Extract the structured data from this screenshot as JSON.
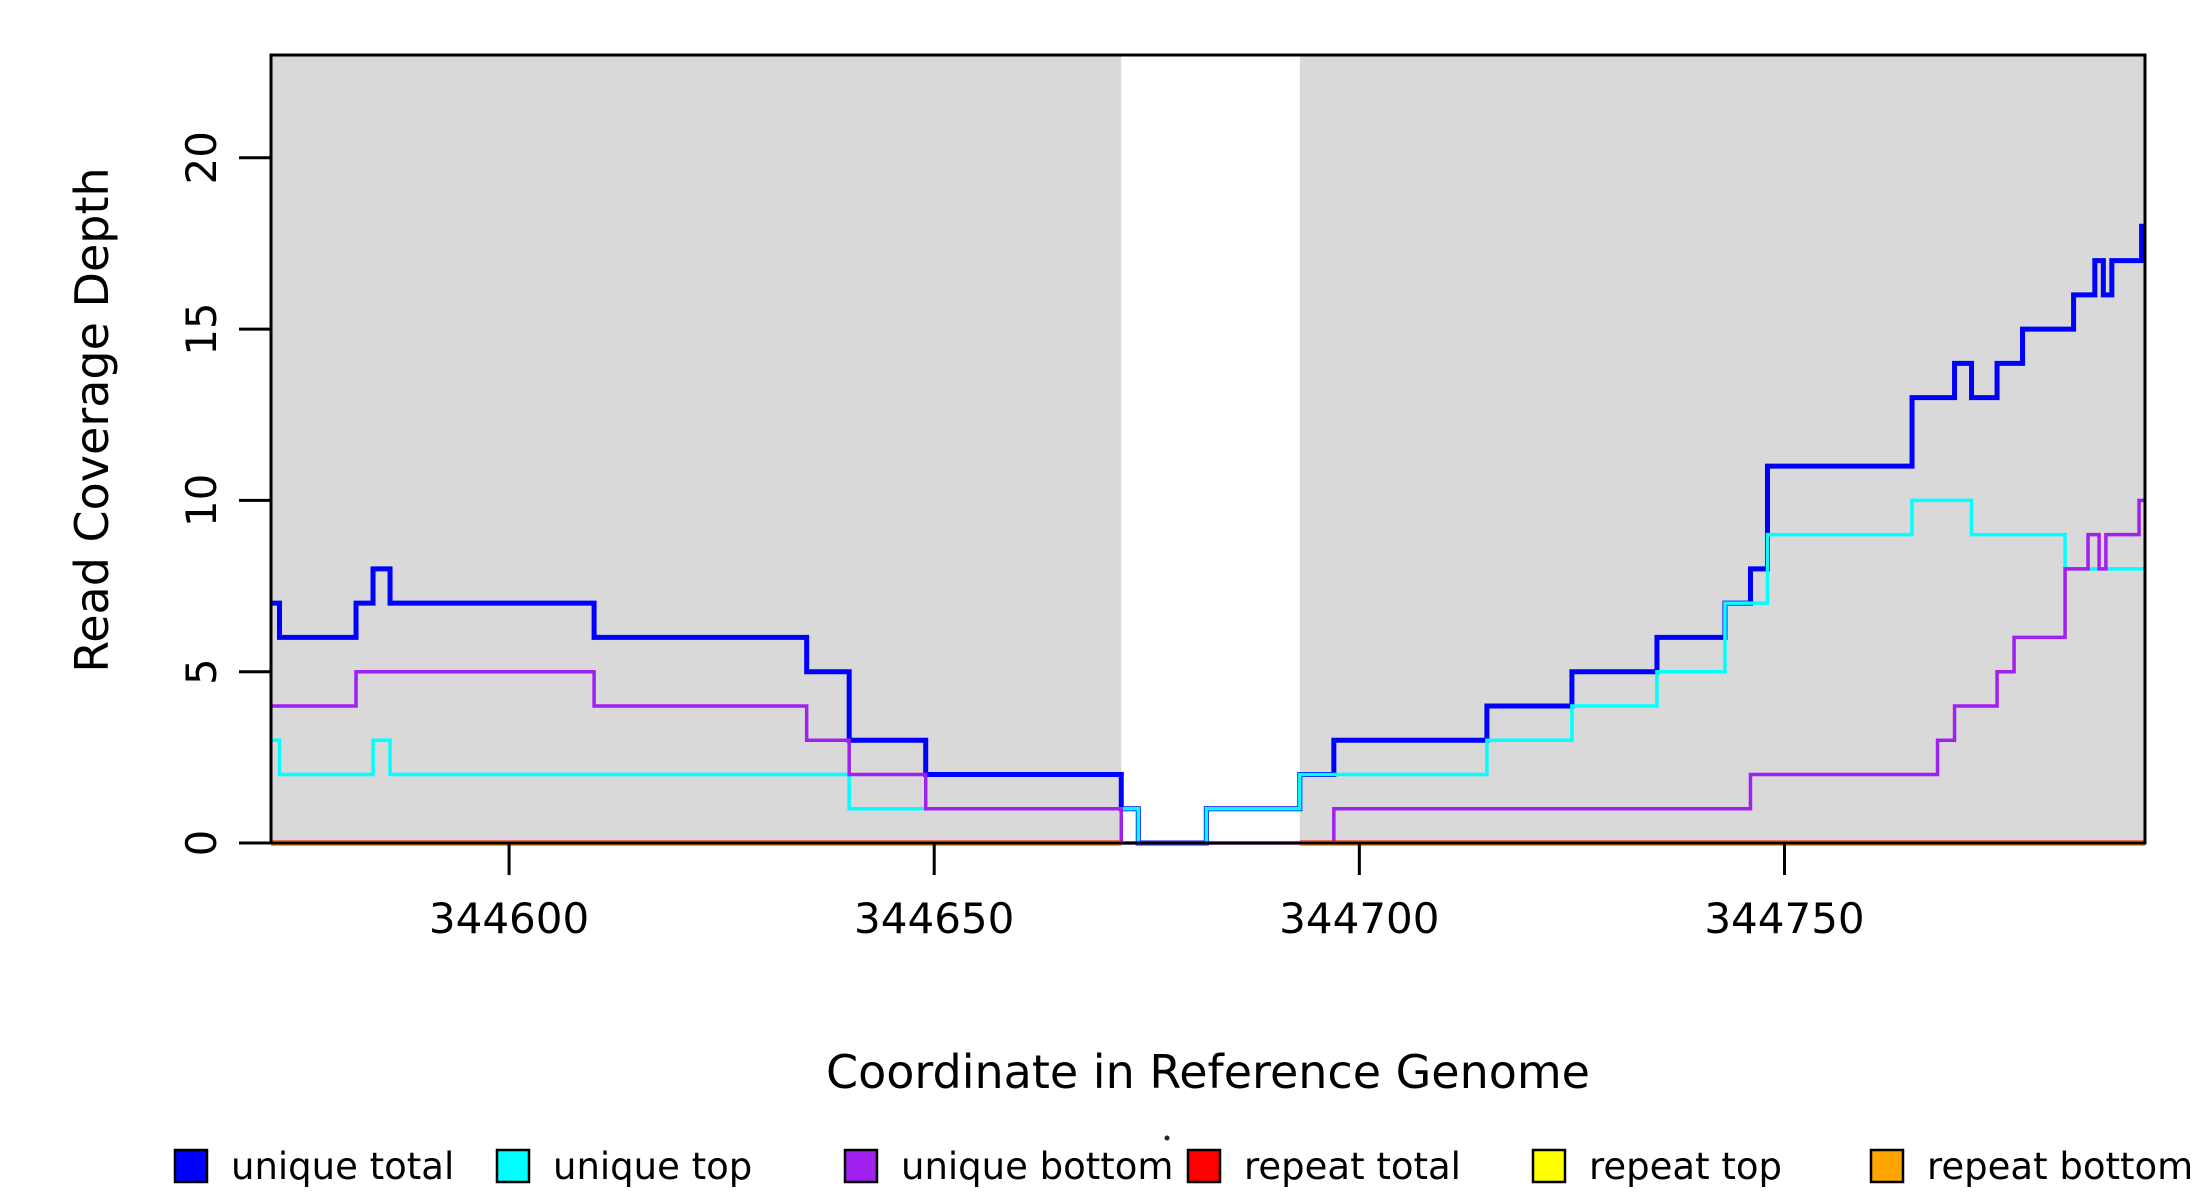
{
  "figure": {
    "background_color": "#ffffff",
    "shaded_band_color": "#d9d9d9",
    "axis_color": "#000000"
  },
  "chart_data": {
    "type": "line",
    "subtype": "step-after-coverage-plot",
    "title": "",
    "xlabel": "Coordinate in Reference Genome",
    "ylabel": "Read Coverage Depth",
    "xlim": [
      344572,
      344792.4
    ],
    "ylim": [
      0,
      23
    ],
    "x_ticks": [
      344600,
      344650,
      344700,
      344750
    ],
    "y_ticks": [
      0,
      5,
      10,
      15,
      20
    ],
    "grid": false,
    "legend_position": "bottom",
    "shaded_regions": [
      {
        "from": 344572,
        "to": 344672
      },
      {
        "from": 344693,
        "to": 344792.4
      }
    ],
    "series": [
      {
        "name": "unique total",
        "color": "#0000ff",
        "line_width": 5,
        "steps": [
          [
            344572,
            7
          ],
          [
            344573,
            6
          ],
          [
            344582,
            7
          ],
          [
            344584,
            8
          ],
          [
            344586,
            7
          ],
          [
            344610,
            6
          ],
          [
            344635,
            5
          ],
          [
            344640,
            3
          ],
          [
            344649,
            2
          ],
          [
            344672,
            1
          ],
          [
            344674,
            0
          ],
          [
            344682,
            1
          ],
          [
            344693,
            2
          ],
          [
            344697,
            3
          ],
          [
            344715,
            4
          ],
          [
            344725,
            5
          ],
          [
            344735,
            6
          ],
          [
            344743,
            7
          ],
          [
            344746,
            8
          ],
          [
            344748,
            11
          ],
          [
            344765,
            13
          ],
          [
            344770,
            14
          ],
          [
            344772,
            13
          ],
          [
            344775,
            14
          ],
          [
            344778,
            15
          ],
          [
            344784,
            16
          ],
          [
            344786.5,
            17
          ],
          [
            344787.5,
            16
          ],
          [
            344788.5,
            17
          ],
          [
            344792,
            18
          ]
        ]
      },
      {
        "name": "unique top",
        "color": "#00ffff",
        "line_width": 3.5,
        "steps": [
          [
            344572,
            3
          ],
          [
            344573,
            2
          ],
          [
            344584,
            3
          ],
          [
            344586,
            2
          ],
          [
            344640,
            1
          ],
          [
            344674,
            0
          ],
          [
            344682,
            1
          ],
          [
            344693,
            2
          ],
          [
            344715,
            3
          ],
          [
            344725,
            4
          ],
          [
            344735,
            5
          ],
          [
            344743,
            7
          ],
          [
            344748,
            9
          ],
          [
            344765,
            10
          ],
          [
            344772,
            9
          ],
          [
            344783,
            8
          ]
        ]
      },
      {
        "name": "unique bottom",
        "color": "#a020f0",
        "line_width": 3.5,
        "steps": [
          [
            344572,
            4
          ],
          [
            344582,
            5
          ],
          [
            344610,
            4
          ],
          [
            344635,
            3
          ],
          [
            344640,
            2
          ],
          [
            344649,
            1
          ],
          [
            344672,
            0
          ],
          [
            344697,
            1
          ],
          [
            344746,
            2
          ],
          [
            344768,
            3
          ],
          [
            344770,
            4
          ],
          [
            344775,
            5
          ],
          [
            344777,
            6
          ],
          [
            344783,
            8
          ],
          [
            344785.7,
            9
          ],
          [
            344787,
            8
          ],
          [
            344787.8,
            9
          ],
          [
            344791.7,
            10
          ]
        ]
      },
      {
        "name": "repeat total",
        "color": "#ff0000",
        "line_width": 5,
        "constant_value": 0,
        "segments": [
          {
            "from": 344572,
            "to": 344672
          },
          {
            "from": 344693,
            "to": 344792.4
          }
        ]
      },
      {
        "name": "repeat top",
        "color": "#ffff00",
        "line_width": 3.5,
        "constant_value": 0,
        "segments": [
          {
            "from": 344572,
            "to": 344672
          },
          {
            "from": 344693,
            "to": 344792.4
          }
        ]
      },
      {
        "name": "repeat bottom",
        "color": "#ffa500",
        "line_width": 4,
        "constant_value": 0,
        "segments": [
          {
            "from": 344572,
            "to": 344672
          },
          {
            "from": 344693,
            "to": 344792.4
          }
        ]
      }
    ]
  },
  "legend": {
    "items": [
      {
        "label": "unique total",
        "color": "#0000ff"
      },
      {
        "label": "unique top",
        "color": "#00ffff"
      },
      {
        "label": "unique bottom",
        "color": "#a020f0"
      },
      {
        "label": "repeat total",
        "color": "#ff0000"
      },
      {
        "label": "repeat top",
        "color": "#ffff00"
      },
      {
        "label": "repeat bottom",
        "color": "#ffa500"
      }
    ]
  }
}
